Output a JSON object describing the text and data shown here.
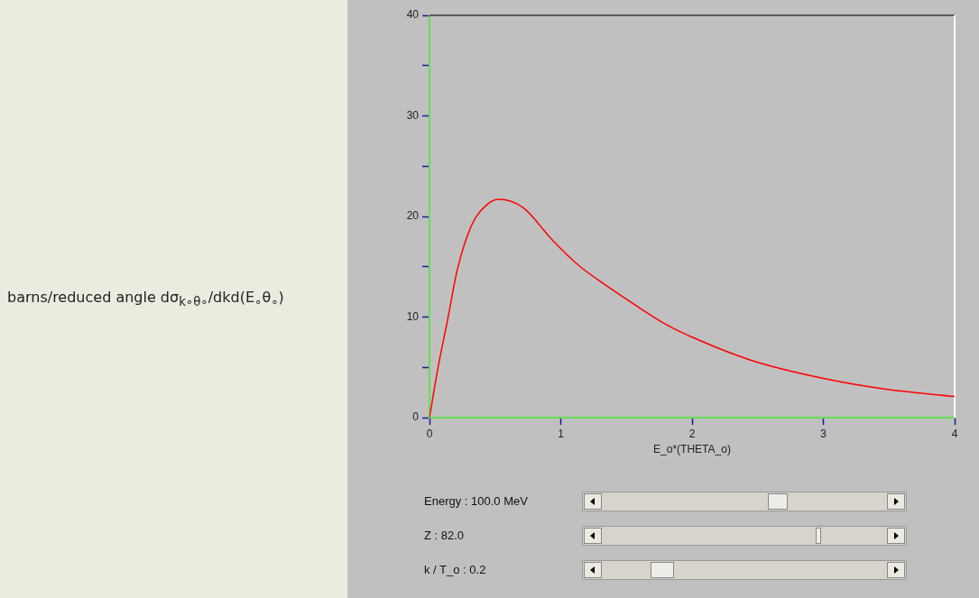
{
  "chart_data": {
    "type": "line",
    "xlabel": "E_o*(THETA_o)",
    "series": [
      {
        "color": "#ff0000",
        "x": [
          0,
          0.064,
          0.142,
          0.21,
          0.32,
          0.44,
          0.53,
          0.71,
          0.94,
          1.13,
          1.35,
          1.59,
          1.81,
          2.0,
          2.45,
          3.0,
          3.49,
          4.0
        ],
        "values": [
          0,
          4.9,
          10.0,
          14.6,
          19.1,
          21.2,
          21.7,
          20.9,
          17.6,
          15.2,
          13.1,
          11.0,
          9.2,
          8.0,
          5.7,
          3.9,
          2.8,
          2.1
        ]
      }
    ],
    "xlim": [
      0,
      4
    ],
    "xticks": [
      0,
      1,
      2,
      3,
      4
    ],
    "ylim": [
      0,
      40
    ],
    "yticks": [
      0,
      {
        "value": 5,
        "label": null
      },
      10,
      {
        "value": 15,
        "label": null
      },
      20,
      {
        "value": 25,
        "label": null
      },
      30,
      {
        "value": 35,
        "label": null
      },
      40
    ],
    "grid": false,
    "legend": false,
    "marker": "none",
    "line_style": "solid",
    "annotations": [
      "barns/reduced angle dσ$_{k∘θ∘}$/dkd(E$_{∘}$θ$_{∘}$)",
      "Energy : 100.0 MeV",
      "Z : 82.0",
      "k / T_o : 0.2"
    ]
  }
}
